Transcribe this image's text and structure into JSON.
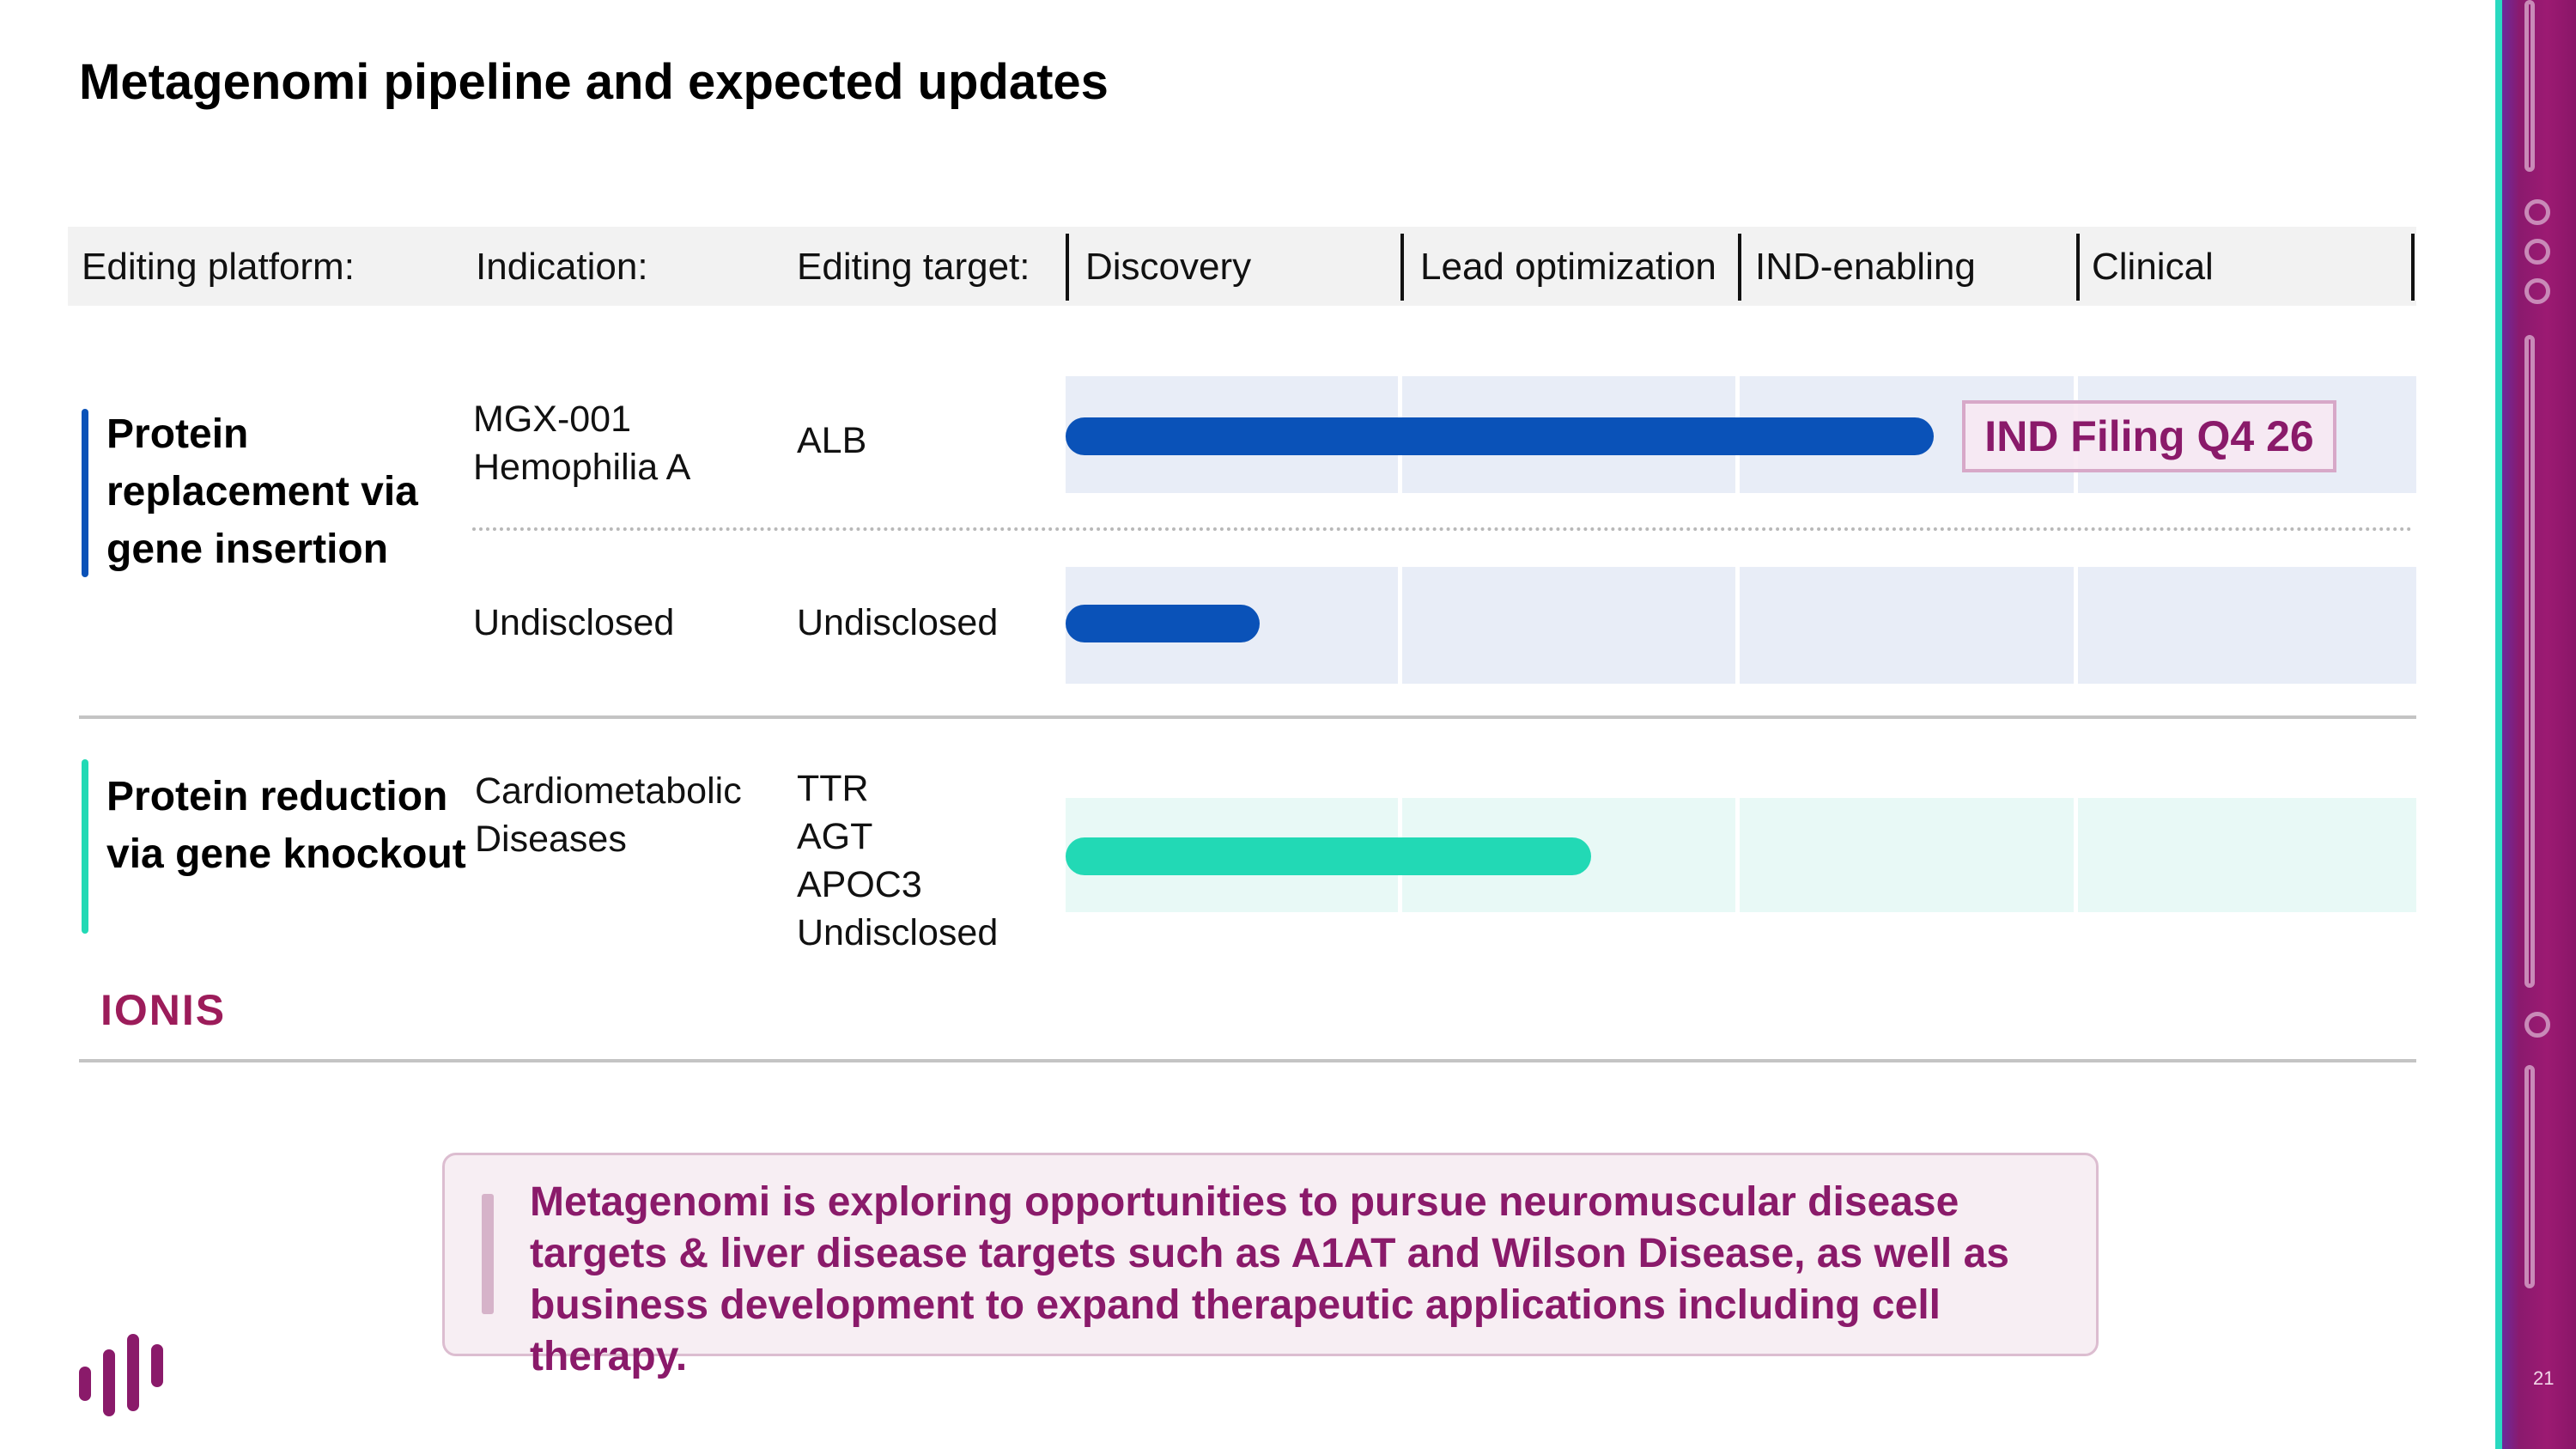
{
  "title": "Metagenomi pipeline and expected updates",
  "table": {
    "headers": {
      "platform": "Editing platform:",
      "indication": "Indication:",
      "target": "Editing target:",
      "phases": [
        "Discovery",
        "Lead optimization",
        "IND-enabling",
        "Clinical"
      ]
    },
    "groups": [
      {
        "platform": "Protein replacement via gene insertion",
        "accent_color": "#0a52b8",
        "rows": [
          {
            "indication": [
              "MGX-001",
              "Hemophilia A"
            ],
            "target": [
              "ALB"
            ],
            "progress_phases": 2.6
          },
          {
            "indication": [
              "Undisclosed"
            ],
            "target": [
              "Undisclosed"
            ],
            "progress_phases": 0.57
          }
        ]
      },
      {
        "platform": "Protein reduction via gene knockout",
        "accent_color": "#22d9b5",
        "partner_logo": "IONIS",
        "rows": [
          {
            "indication": [
              "Cardiometabolic",
              "Diseases"
            ],
            "target": [
              "TTR",
              "AGT",
              "APOC3",
              "Undisclosed"
            ],
            "progress_phases": 1.57
          }
        ]
      }
    ],
    "milestone": "IND Filing Q4 26"
  },
  "callout": "Metagenomi is exploring opportunities to pursue neuromuscular disease targets & liver disease targets such as A1AT and Wilson Disease, as well as business development to expand therapeutic applications including cell therapy.",
  "page_number": "21",
  "colors": {
    "accent_blue": "#0a52b8",
    "accent_teal": "#22d9b5",
    "brand_magenta": "#8a1a6a"
  }
}
